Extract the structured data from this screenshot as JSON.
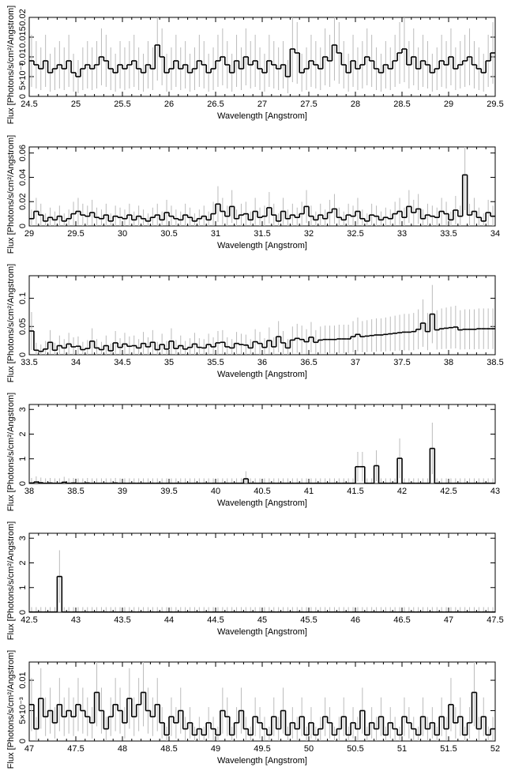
{
  "figure": {
    "description_colors": {
      "foreground": "#000000",
      "errorbar": "#bbbbbb",
      "background": "#ffffff"
    }
  },
  "chart_data": [
    {
      "type": "line",
      "step": true,
      "xlabel": "Wavelength [Angstrom]",
      "ylabel": "Flux [Photons/s/cm²/Angstrom]",
      "xlim": [
        24.5,
        29.5
      ],
      "ylim": [
        0,
        0.02
      ],
      "x_ticks": [
        "24.5",
        "25",
        "25.5",
        "26",
        "26.5",
        "27",
        "27.5",
        "28",
        "28.5",
        "29",
        "29.5"
      ],
      "y_ticks": [
        {
          "v": 0,
          "label": "0"
        },
        {
          "v": 0.005,
          "label": "5×10⁻³"
        },
        {
          "v": 0.01,
          "label": "0.01"
        },
        {
          "v": 0.015,
          "label": "0.015"
        },
        {
          "v": 0.02,
          "label": "0.02"
        }
      ],
      "series": [
        {
          "x_start": 24.5,
          "x_end": 29.5,
          "values": [
            0.009,
            0.008,
            0.007,
            0.009,
            0.006,
            0.007,
            0.008,
            0.007,
            0.009,
            0.006,
            0.005,
            0.007,
            0.008,
            0.007,
            0.008,
            0.01,
            0.009,
            0.007,
            0.006,
            0.008,
            0.007,
            0.008,
            0.009,
            0.007,
            0.006,
            0.008,
            0.007,
            0.013,
            0.01,
            0.006,
            0.007,
            0.009,
            0.007,
            0.008,
            0.006,
            0.007,
            0.009,
            0.008,
            0.006,
            0.007,
            0.009,
            0.01,
            0.008,
            0.006,
            0.009,
            0.007,
            0.01,
            0.008,
            0.009,
            0.007,
            0.006,
            0.009,
            0.008,
            0.007,
            0.008,
            0.005,
            0.012,
            0.011,
            0.006,
            0.007,
            0.009,
            0.008,
            0.007,
            0.01,
            0.009,
            0.013,
            0.011,
            0.008,
            0.006,
            0.009,
            0.007,
            0.008,
            0.01,
            0.009,
            0.007,
            0.006,
            0.008,
            0.007,
            0.009,
            0.011,
            0.012,
            0.008,
            0.01,
            0.007,
            0.009,
            0.008,
            0.006,
            0.007,
            0.009,
            0.008,
            0.01,
            0.007,
            0.008,
            0.009,
            0.01,
            0.008,
            0.007,
            0.006,
            0.009,
            0.011
          ]
        }
      ]
    },
    {
      "type": "line",
      "step": true,
      "xlabel": "Wavelength [Angstrom]",
      "ylabel": "Flux [Photons/s/cm²/Angstrom]",
      "xlim": [
        29,
        34
      ],
      "ylim": [
        0,
        0.065
      ],
      "x_ticks": [
        "29",
        "29.5",
        "30",
        "30.5",
        "31",
        "31.5",
        "32",
        "32.5",
        "33",
        "33.5",
        "34"
      ],
      "y_ticks": [
        {
          "v": 0,
          "label": "0"
        },
        {
          "v": 0.02,
          "label": "0.02"
        },
        {
          "v": 0.04,
          "label": "0.04"
        },
        {
          "v": 0.06,
          "label": "0.06"
        }
      ],
      "series": [
        {
          "x_start": 29,
          "x_end": 34,
          "values": [
            0.006,
            0.012,
            0.009,
            0.004,
            0.007,
            0.005,
            0.008,
            0.004,
            0.006,
            0.01,
            0.012,
            0.009,
            0.008,
            0.011,
            0.007,
            0.006,
            0.009,
            0.004,
            0.008,
            0.007,
            0.006,
            0.009,
            0.005,
            0.008,
            0.006,
            0.004,
            0.007,
            0.009,
            0.005,
            0.011,
            0.008,
            0.006,
            0.005,
            0.009,
            0.007,
            0.004,
            0.006,
            0.008,
            0.005,
            0.01,
            0.018,
            0.012,
            0.008,
            0.016,
            0.006,
            0.009,
            0.01,
            0.005,
            0.012,
            0.007,
            0.008,
            0.015,
            0.009,
            0.004,
            0.012,
            0.006,
            0.009,
            0.007,
            0.01,
            0.016,
            0.008,
            0.005,
            0.009,
            0.006,
            0.011,
            0.014,
            0.007,
            0.005,
            0.009,
            0.008,
            0.012,
            0.006,
            0.004,
            0.009,
            0.008,
            0.005,
            0.007,
            0.006,
            0.01,
            0.012,
            0.007,
            0.016,
            0.011,
            0.014,
            0.006,
            0.009,
            0.008,
            0.007,
            0.012,
            0.01,
            0.005,
            0.013,
            0.008,
            0.042,
            0.009,
            0.012,
            0.007,
            0.004,
            0.011,
            0.008
          ]
        }
      ]
    },
    {
      "type": "line",
      "step": true,
      "xlabel": "Wavelength [Angstrom]",
      "ylabel": "Flux [Photons/s/cm²/Angstrom]",
      "xlim": [
        33.5,
        38.5
      ],
      "ylim": [
        0,
        0.14
      ],
      "x_ticks": [
        "33.5",
        "34",
        "34.5",
        "35",
        "35.5",
        "36",
        "36.5",
        "37",
        "37.5",
        "38",
        "38.5"
      ],
      "y_ticks": [
        {
          "v": 0,
          "label": "0"
        },
        {
          "v": 0.05,
          "label": "0.05"
        },
        {
          "v": 0.1,
          "label": "0.1"
        }
      ],
      "series": [
        {
          "x_start": 33.5,
          "x_end": 38.5,
          "values": [
            0.042,
            0.008,
            0.006,
            0.01,
            0.022,
            0.008,
            0.016,
            0.012,
            0.019,
            0.014,
            0.015,
            0.009,
            0.011,
            0.024,
            0.012,
            0.009,
            0.016,
            0.007,
            0.021,
            0.013,
            0.019,
            0.015,
            0.016,
            0.012,
            0.02,
            0.014,
            0.022,
            0.009,
            0.018,
            0.01,
            0.024,
            0.011,
            0.016,
            0.01,
            0.013,
            0.019,
            0.013,
            0.012,
            0.018,
            0.014,
            0.021,
            0.022,
            0.014,
            0.012,
            0.02,
            0.018,
            0.017,
            0.012,
            0.023,
            0.02,
            0.013,
            0.025,
            0.014,
            0.032,
            0.021,
            0.012,
            0.026,
            0.029,
            0.027,
            0.023,
            0.031,
            0.022,
            0.026,
            0.027,
            0.027,
            0.027,
            0.028,
            0.028,
            0.028,
            0.032,
            0.036,
            0.032,
            0.033,
            0.034,
            0.035,
            0.035,
            0.036,
            0.037,
            0.038,
            0.039,
            0.04,
            0.04,
            0.041,
            0.045,
            0.056,
            0.041,
            0.072,
            0.044,
            0.046,
            0.047,
            0.048,
            0.049,
            0.044,
            0.045,
            0.045,
            0.045,
            0.046,
            0.046,
            0.046,
            0.046
          ]
        }
      ]
    },
    {
      "type": "line",
      "step": true,
      "xlabel": "Wavelength [Angstrom]",
      "ylabel": "Flux [Photons/s/cm²/Angstrom]",
      "xlim": [
        38,
        43
      ],
      "ylim": [
        0,
        3.2
      ],
      "x_ticks": [
        "38",
        "38.5",
        "39",
        "39.5",
        "40",
        "40.5",
        "41",
        "41.5",
        "42",
        "42.5",
        "43"
      ],
      "y_ticks": [
        {
          "v": 0,
          "label": "0"
        },
        {
          "v": 1,
          "label": "1"
        },
        {
          "v": 2,
          "label": "2"
        },
        {
          "v": 3,
          "label": "3"
        }
      ],
      "series": [
        {
          "x_start": 38,
          "x_end": 43,
          "values": [
            0.02,
            0.06,
            0.03,
            0.01,
            0.02,
            0.01,
            0.01,
            0.05,
            0.01,
            0.02,
            0.01,
            0.01,
            0.02,
            0.01,
            0.01,
            0.01,
            0.01,
            0.01,
            0.02,
            0.01,
            0.01,
            0.01,
            0.01,
            0.01,
            0.01,
            0.01,
            0.01,
            0.01,
            0.01,
            0.01,
            0.01,
            0.01,
            0.01,
            0.01,
            0.01,
            0.01,
            0.01,
            0.01,
            0.01,
            0.01,
            0.01,
            0.01,
            0.01,
            0.01,
            0.01,
            0.01,
            0.19,
            0.01,
            0.01,
            0.01,
            0.01,
            0.01,
            0.01,
            0.01,
            0.01,
            0.01,
            0.01,
            0.01,
            0.01,
            0.01,
            0.01,
            0.01,
            0.01,
            0.01,
            0.01,
            0.01,
            0.01,
            0.01,
            0.01,
            0.01,
            0.68,
            0.68,
            0.01,
            0.01,
            0.72,
            0.01,
            0.01,
            0.01,
            0.01,
            1.02,
            0.01,
            0.01,
            0.01,
            0.01,
            0.01,
            0.01,
            1.42,
            0.01,
            0.01,
            0.01,
            0.01,
            0.01,
            0.01,
            0.01,
            0.01,
            0.01,
            0.01,
            0.01,
            0.01,
            0.01
          ]
        }
      ]
    },
    {
      "type": "line",
      "step": true,
      "xlabel": "Wavelength [Angstrom]",
      "ylabel": "Flux [Photons/s/cm²/Angstrom]",
      "xlim": [
        42.5,
        47.5
      ],
      "ylim": [
        0,
        3.2
      ],
      "x_ticks": [
        "42.5",
        "43",
        "43.5",
        "44",
        "44.5",
        "45",
        "45.5",
        "46",
        "46.5",
        "47",
        "47.5"
      ],
      "y_ticks": [
        {
          "v": 0,
          "label": "0"
        },
        {
          "v": 1,
          "label": "1"
        },
        {
          "v": 2,
          "label": "2"
        },
        {
          "v": 3,
          "label": "3"
        }
      ],
      "series": [
        {
          "x_start": 42.5,
          "x_end": 47.5,
          "values": [
            0.01,
            0.01,
            0.01,
            0.01,
            0.01,
            0.01,
            1.45,
            0.01,
            0.01,
            0.01,
            0.01,
            0.01,
            0.01,
            0.01,
            0.01,
            0.01,
            0.01,
            0.01,
            0.01,
            0.01,
            0.01,
            0.01,
            0.01,
            0.01,
            0.01,
            0.01,
            0.01,
            0.01,
            0.01,
            0.01,
            0.01,
            0.01,
            0.01,
            0.01,
            0.01,
            0.01,
            0.01,
            0.01,
            0.01,
            0.01,
            0.01,
            0.01,
            0.01,
            0.01,
            0.01,
            0.01,
            0.01,
            0.01,
            0.01,
            0.01,
            0.01,
            0.01,
            0.01,
            0.01,
            0.01,
            0.01,
            0.01,
            0.01,
            0.01,
            0.01,
            0.01,
            0.01,
            0.01,
            0.01,
            0.01,
            0.01,
            0.01,
            0.01,
            0.01,
            0.01,
            0.01,
            0.01,
            0.01,
            0.01,
            0.01,
            0.01,
            0.01,
            0.01,
            0.01,
            0.01,
            0.01,
            0.01,
            0.01,
            0.01,
            0.01,
            0.01,
            0.01,
            0.01,
            0.01,
            0.01,
            0.01,
            0.01,
            0.01,
            0.01,
            0.01,
            0.01,
            0.01,
            0.01,
            0.01,
            0.01
          ]
        }
      ]
    },
    {
      "type": "line",
      "step": true,
      "xlabel": "Wavelength [Angstrom]",
      "ylabel": "Flux [Photons/s/cm²/Angstrom]",
      "xlim": [
        47,
        52
      ],
      "ylim": [
        0,
        0.013
      ],
      "x_ticks": [
        "47",
        "47.5",
        "48",
        "48.5",
        "49",
        "49.5",
        "50",
        "50.5",
        "51",
        "51.5",
        "52"
      ],
      "y_ticks": [
        {
          "v": 0,
          "label": "0"
        },
        {
          "v": 0.005,
          "label": "5×10⁻³"
        },
        {
          "v": 0.01,
          "label": "0.01"
        }
      ],
      "series": [
        {
          "x_start": 47,
          "x_end": 52,
          "values": [
            0.006,
            0.002,
            0.007,
            0.004,
            0.005,
            0.003,
            0.006,
            0.004,
            0.005,
            0.004,
            0.006,
            0.005,
            0.004,
            0.003,
            0.008,
            0.005,
            0.002,
            0.004,
            0.006,
            0.005,
            0.003,
            0.007,
            0.004,
            0.006,
            0.008,
            0.005,
            0.004,
            0.006,
            0.003,
            0.001,
            0.004,
            0.003,
            0.005,
            0.002,
            0.003,
            0.001,
            0.002,
            0.001,
            0.003,
            0.002,
            0.001,
            0.005,
            0.004,
            0.001,
            0.003,
            0.005,
            0.002,
            0.001,
            0.004,
            0.003,
            0.002,
            0.001,
            0.004,
            0.002,
            0.005,
            0.001,
            0.003,
            0.002,
            0.004,
            0.001,
            0.003,
            0.001,
            0.002,
            0.004,
            0.003,
            0.001,
            0.002,
            0.004,
            0.001,
            0.003,
            0.002,
            0.005,
            0.001,
            0.003,
            0.002,
            0.004,
            0.001,
            0.003,
            0.002,
            0.001,
            0.004,
            0.003,
            0.002,
            0.001,
            0.004,
            0.002,
            0.003,
            0.001,
            0.004,
            0.002,
            0.006,
            0.003,
            0.004,
            0.001,
            0.003,
            0.008,
            0.002,
            0.004,
            0.001,
            0.002
          ]
        }
      ]
    }
  ]
}
